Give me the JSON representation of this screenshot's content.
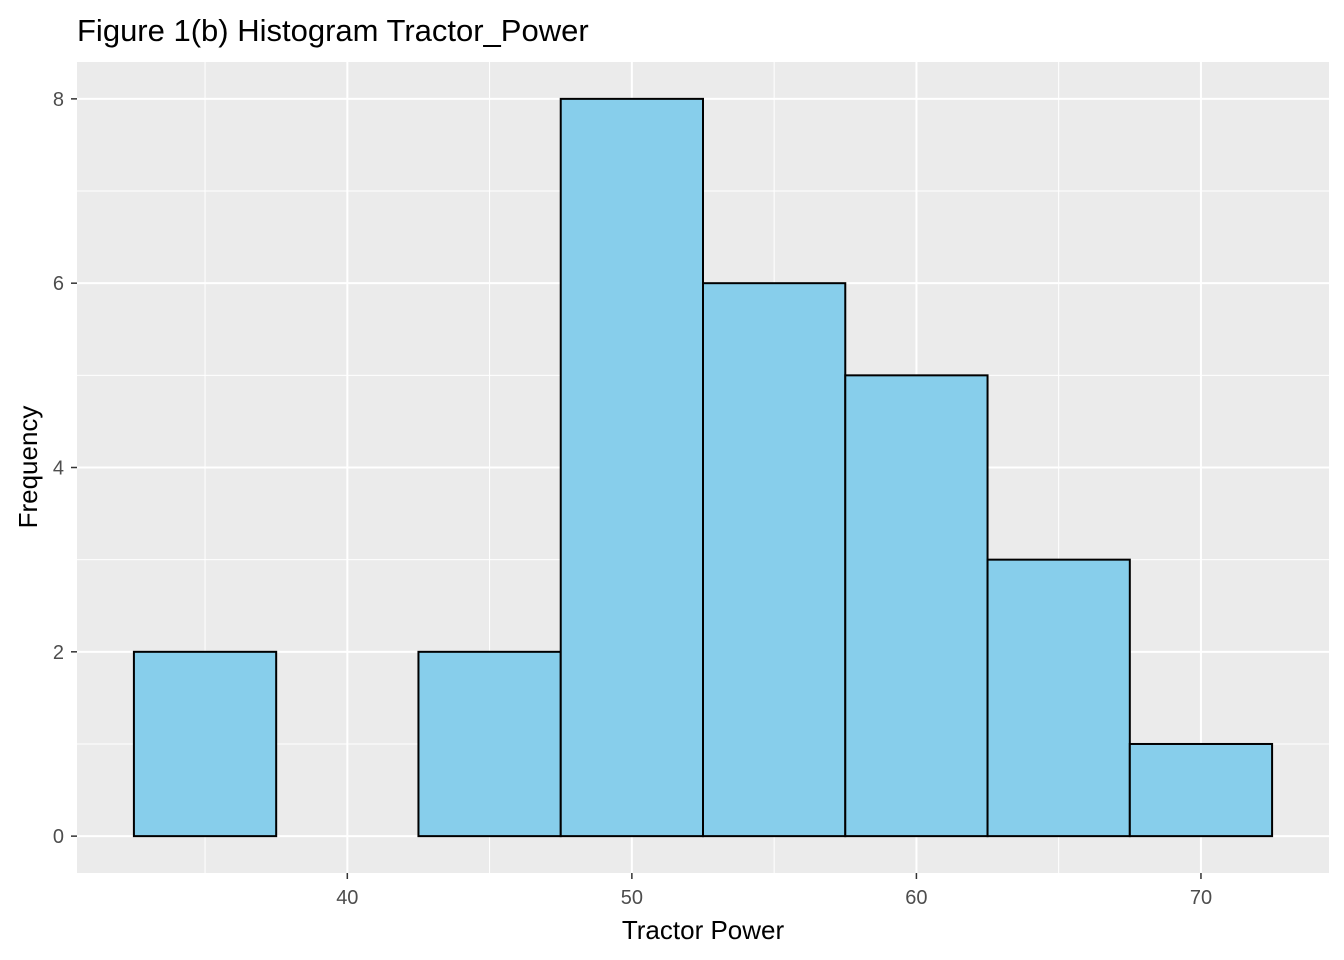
{
  "chart_data": {
    "type": "bar",
    "title": "Figure 1(b) Histogram Tractor_Power",
    "xlabel": "Tractor Power",
    "ylabel": "Frequency",
    "bins": [
      {
        "start": 32.5,
        "end": 37.5,
        "count": 2
      },
      {
        "start": 37.5,
        "end": 42.5,
        "count": 0
      },
      {
        "start": 42.5,
        "end": 47.5,
        "count": 2
      },
      {
        "start": 47.5,
        "end": 52.5,
        "count": 8
      },
      {
        "start": 52.5,
        "end": 57.5,
        "count": 6
      },
      {
        "start": 57.5,
        "end": 62.5,
        "count": 5
      },
      {
        "start": 62.5,
        "end": 67.5,
        "count": 3
      },
      {
        "start": 67.5,
        "end": 72.5,
        "count": 1
      }
    ],
    "xlim": [
      30.5,
      74.5
    ],
    "ylim": [
      -0.4,
      8.4
    ],
    "x_ticks": [
      40,
      50,
      60,
      70
    ],
    "x_minor_ticks": [
      35,
      45,
      55,
      65
    ],
    "y_ticks": [
      0,
      2,
      4,
      6,
      8
    ],
    "y_minor_ticks": [
      1,
      3,
      5,
      7
    ],
    "grid": true,
    "legend": "none",
    "colors": {
      "bar_fill": "#87CEEB",
      "bar_outline": "#000000",
      "panel_background": "#EBEBEB",
      "grid_line": "#FFFFFF"
    }
  }
}
